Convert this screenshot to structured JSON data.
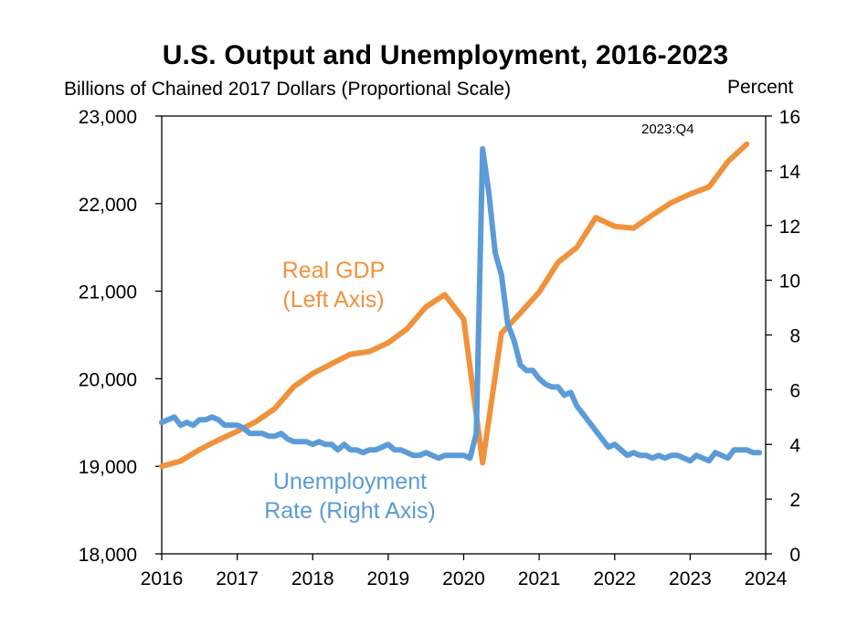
{
  "chart_data": {
    "type": "line",
    "title": "U.S. Output and Unemployment, 2016-2023",
    "left_axis_label": "Billions of Chained 2017 Dollars (Proportional Scale)",
    "right_axis_label": "Percent",
    "xlim": [
      2016,
      2024
    ],
    "x_ticks": [
      "2016",
      "2017",
      "2018",
      "2019",
      "2020",
      "2021",
      "2022",
      "2023",
      "2024"
    ],
    "ylim_left": [
      18000,
      23000
    ],
    "y_ticks_left": [
      "18,000",
      "19,000",
      "20,000",
      "21,000",
      "22,000",
      "23,000"
    ],
    "ylim_right": [
      0,
      16
    ],
    "y_ticks_right": [
      "0",
      "2",
      "4",
      "6",
      "8",
      "10",
      "12",
      "14",
      "16"
    ],
    "annotations": {
      "end_label": "2023:Q4"
    },
    "series": [
      {
        "name": "Real GDP\n(Left Axis)",
        "axis": "left",
        "color": "#f0923c",
        "x": [
          2016.0,
          2016.25,
          2016.5,
          2016.75,
          2017.0,
          2017.25,
          2017.5,
          2017.75,
          2018.0,
          2018.25,
          2018.5,
          2018.75,
          2019.0,
          2019.25,
          2019.5,
          2019.75,
          2020.0,
          2020.25,
          2020.5,
          2020.75,
          2021.0,
          2021.25,
          2021.5,
          2021.75,
          2022.0,
          2022.25,
          2022.5,
          2022.75,
          2023.0,
          2023.25,
          2023.5,
          2023.75
        ],
        "values": [
          19000,
          19060,
          19190,
          19300,
          19400,
          19510,
          19660,
          19910,
          20060,
          20170,
          20280,
          20310,
          20410,
          20570,
          20820,
          20960,
          20680,
          19040,
          20520,
          20750,
          20990,
          21330,
          21500,
          21840,
          21740,
          21720,
          21870,
          22010,
          22110,
          22190,
          22480,
          22680
        ]
      },
      {
        "name": "Unemployment\nRate (Right Axis)",
        "axis": "right",
        "color": "#5b9bd8",
        "x": [
          2016.0,
          2016.083,
          2016.167,
          2016.25,
          2016.333,
          2016.417,
          2016.5,
          2016.583,
          2016.667,
          2016.75,
          2016.833,
          2016.917,
          2017.0,
          2017.083,
          2017.167,
          2017.25,
          2017.333,
          2017.417,
          2017.5,
          2017.583,
          2017.667,
          2017.75,
          2017.833,
          2017.917,
          2018.0,
          2018.083,
          2018.167,
          2018.25,
          2018.333,
          2018.417,
          2018.5,
          2018.583,
          2018.667,
          2018.75,
          2018.833,
          2018.917,
          2019.0,
          2019.083,
          2019.167,
          2019.25,
          2019.333,
          2019.417,
          2019.5,
          2019.583,
          2019.667,
          2019.75,
          2019.833,
          2019.917,
          2020.0,
          2020.083,
          2020.167,
          2020.25,
          2020.333,
          2020.417,
          2020.5,
          2020.583,
          2020.667,
          2020.75,
          2020.833,
          2020.917,
          2021.0,
          2021.083,
          2021.167,
          2021.25,
          2021.333,
          2021.417,
          2021.5,
          2021.583,
          2021.667,
          2021.75,
          2021.833,
          2021.917,
          2022.0,
          2022.083,
          2022.167,
          2022.25,
          2022.333,
          2022.417,
          2022.5,
          2022.583,
          2022.667,
          2022.75,
          2022.833,
          2022.917,
          2023.0,
          2023.083,
          2023.167,
          2023.25,
          2023.333,
          2023.417,
          2023.5,
          2023.583,
          2023.667,
          2023.75,
          2023.833,
          2023.917
        ],
        "values": [
          4.8,
          4.9,
          5.0,
          4.7,
          4.8,
          4.7,
          4.9,
          4.9,
          5.0,
          4.9,
          4.7,
          4.7,
          4.7,
          4.6,
          4.4,
          4.4,
          4.4,
          4.3,
          4.3,
          4.4,
          4.2,
          4.1,
          4.1,
          4.1,
          4.0,
          4.1,
          4.0,
          4.0,
          3.8,
          4.0,
          3.8,
          3.8,
          3.7,
          3.8,
          3.8,
          3.9,
          4.0,
          3.8,
          3.8,
          3.7,
          3.6,
          3.6,
          3.7,
          3.6,
          3.5,
          3.6,
          3.6,
          3.6,
          3.6,
          3.5,
          4.4,
          14.8,
          13.2,
          11.0,
          10.2,
          8.4,
          7.8,
          6.9,
          6.7,
          6.7,
          6.4,
          6.2,
          6.1,
          6.1,
          5.8,
          5.9,
          5.4,
          5.1,
          4.8,
          4.5,
          4.2,
          3.9,
          4.0,
          3.8,
          3.6,
          3.7,
          3.6,
          3.6,
          3.5,
          3.6,
          3.5,
          3.6,
          3.6,
          3.5,
          3.4,
          3.6,
          3.5,
          3.4,
          3.7,
          3.6,
          3.5,
          3.8,
          3.8,
          3.8,
          3.7,
          3.7
        ]
      }
    ],
    "grid": false,
    "legend": "inline labels"
  }
}
